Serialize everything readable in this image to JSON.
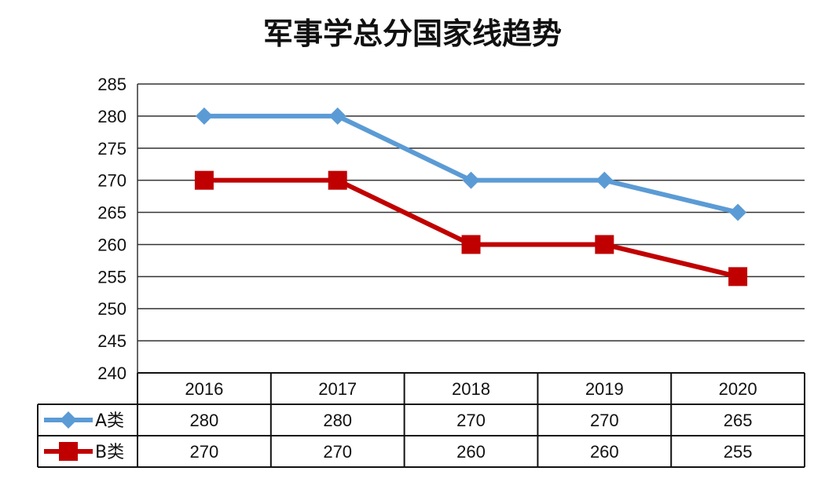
{
  "chart_data": {
    "type": "line",
    "title": "军事学总分国家线趋势",
    "categories": [
      "2016",
      "2017",
      "2018",
      "2019",
      "2020"
    ],
    "ylim": [
      240,
      285
    ],
    "yticks": [
      240,
      245,
      250,
      255,
      260,
      265,
      270,
      275,
      280,
      285
    ],
    "grid": true,
    "legend": "data-table",
    "series": [
      {
        "name": "A类",
        "values": [
          280,
          280,
          270,
          270,
          265
        ],
        "color": "#5b9bd5",
        "marker": "diamond"
      },
      {
        "name": "B类",
        "values": [
          270,
          270,
          260,
          260,
          255
        ],
        "color": "#c00000",
        "marker": "square"
      }
    ]
  }
}
